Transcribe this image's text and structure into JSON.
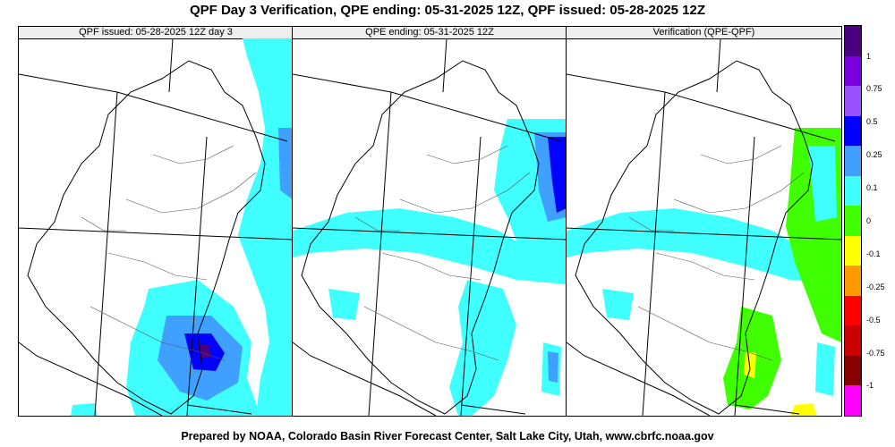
{
  "title": "QPF Day 3 Verification, QPE ending: 05-31-2025 12Z, QPF issued: 05-28-2025 12Z",
  "footer": "Prepared by NOAA, Colorado Basin River Forecast Center, Salt Lake City, Utah, www.cbrfc.noaa.gov",
  "panels": [
    {
      "label": "QPF issued: 05-28-2025 12Z day 3"
    },
    {
      "label": "QPE ending: 05-31-2025 12Z"
    },
    {
      "label": "Verification (QPE-QPF)"
    }
  ],
  "legend": {
    "colors": [
      "#4a0080",
      "#7a00e0",
      "#9a50ff",
      "#0000ff",
      "#3fa0ff",
      "#40ffff",
      "#40ff00",
      "#ffff00",
      "#ff9900",
      "#ff0000",
      "#cc0000",
      "#880000",
      "#ff00ff"
    ],
    "labels": [
      "1",
      "0.75",
      "0.5",
      "0.25",
      "0.1",
      "0",
      "-0.1",
      "-0.25",
      "-0.5",
      "-0.75",
      "-1"
    ]
  },
  "map_colors": {
    "light_precip": "#40ffff",
    "moderate_precip": "#3fa0ff",
    "heavy_precip": "#0000ff",
    "very_heavy_precip": "#4a0080",
    "positive_diff": "#40ff00",
    "negative_diff": "#ffff00"
  }
}
